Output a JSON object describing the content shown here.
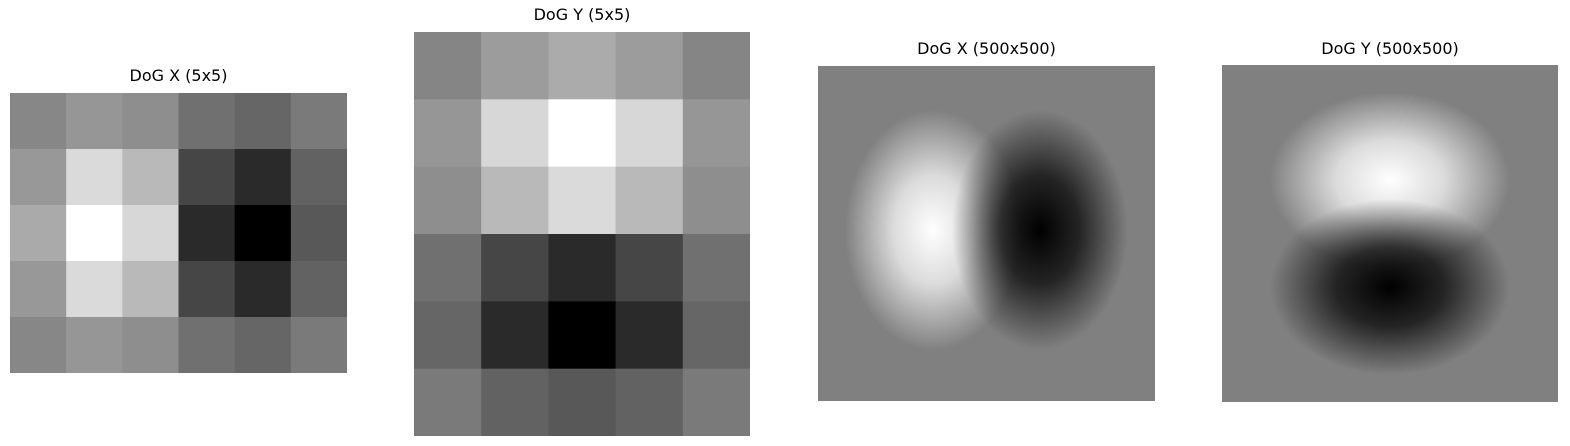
{
  "panels": [
    {
      "title": "DoG X (5x5)",
      "kind": "grid",
      "rows": 5,
      "cols": 6,
      "cells": [
        [
          135,
          150,
          142,
          112,
          102,
          122
        ],
        [
          152,
          218,
          185,
          70,
          42,
          98
        ],
        [
          170,
          255,
          215,
          42,
          0,
          88
        ],
        [
          152,
          218,
          185,
          70,
          42,
          98
        ],
        [
          135,
          150,
          142,
          112,
          102,
          122
        ]
      ]
    },
    {
      "title": "DoG Y (5x5)",
      "kind": "grid",
      "rows": 6,
      "cols": 5,
      "cells": [
        [
          133,
          156,
          171,
          156,
          133
        ],
        [
          150,
          215,
          255,
          215,
          150
        ],
        [
          142,
          185,
          218,
          185,
          142
        ],
        [
          112,
          70,
          42,
          70,
          112
        ],
        [
          102,
          42,
          0,
          42,
          102
        ],
        [
          122,
          98,
          88,
          98,
          122
        ]
      ]
    },
    {
      "title": "DoG X (500x500)",
      "kind": "smooth-x"
    },
    {
      "title": "DoG Y (500x500)",
      "kind": "smooth-y"
    }
  ]
}
